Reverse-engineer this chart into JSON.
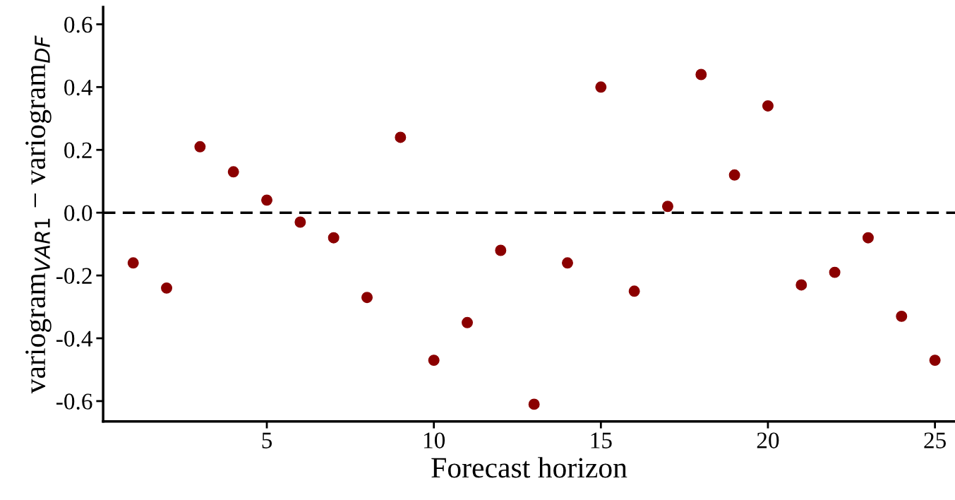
{
  "chart_data": {
    "type": "scatter",
    "xlabel": "Forecast horizon",
    "ylabel": "variogram$_{VAR1}$ − variogram$_{DF}$",
    "x": [
      1,
      2,
      3,
      4,
      5,
      6,
      7,
      8,
      9,
      10,
      11,
      12,
      13,
      14,
      15,
      16,
      17,
      18,
      19,
      20,
      21,
      22,
      23,
      24,
      25
    ],
    "series": [
      {
        "color": "#8b0000",
        "values": [
          -0.16,
          -0.24,
          0.21,
          0.13,
          0.04,
          -0.03,
          -0.08,
          -0.27,
          0.24,
          -0.47,
          -0.35,
          -0.12,
          -0.61,
          -0.16,
          0.4,
          -0.25,
          0.02,
          0.44,
          0.12,
          0.34,
          -0.23,
          -0.19,
          -0.08,
          -0.33,
          -0.47
        ]
      }
    ],
    "xlim": [
      0.1,
      25.6
    ],
    "ylim": [
      -0.665,
      0.655
    ],
    "xticks": [
      5,
      10,
      15,
      20,
      25
    ],
    "yticks": [
      {
        "value": -0.6,
        "label": "-0.6"
      },
      {
        "value": -0.4,
        "label": "-0.4"
      },
      {
        "value": -0.2,
        "label": "-0.2"
      },
      {
        "value": 0.0,
        "label": "0.0"
      },
      {
        "value": 0.2,
        "label": "0.2"
      },
      {
        "value": 0.4,
        "label": "0.4"
      },
      {
        "value": 0.6,
        "label": "0.6"
      }
    ],
    "ref_lines": [
      {
        "axis": "y",
        "value": 0.0,
        "color": "#000000",
        "line_style": "dashed"
      }
    ],
    "marker": "circle",
    "grid": false,
    "legend": false
  }
}
